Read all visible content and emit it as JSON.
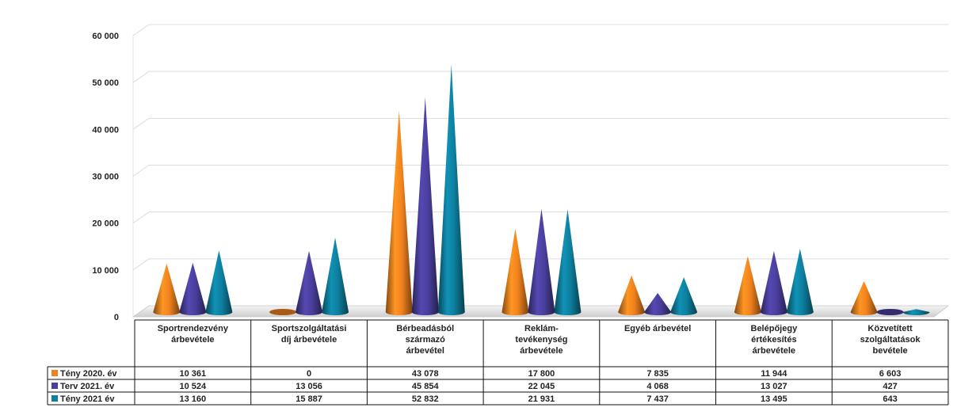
{
  "chart_data": {
    "type": "bar",
    "style": "3d-cone",
    "categories": [
      [
        "Sportrendezvény",
        "árbevétele"
      ],
      [
        "Sportszolgáltatási",
        "díj árbevétele"
      ],
      [
        "Bérbeadásból",
        "származó",
        "árbevétel"
      ],
      [
        "Reklám-",
        "tevékenység",
        "árbevétele"
      ],
      [
        "Egyéb árbevétel"
      ],
      [
        "Belépőjegy",
        "értékesítés",
        "árbevétele"
      ],
      [
        "Közvetített",
        "szolgáltatások",
        "bevétele"
      ]
    ],
    "series": [
      {
        "name": "Tény 2020. év",
        "color": "#f0821e",
        "values": [
          10361,
          0,
          43078,
          17800,
          7835,
          11944,
          6603
        ],
        "labels": [
          "10 361",
          "0",
          "43 078",
          "17 800",
          "7 835",
          "11 944",
          "6 603"
        ]
      },
      {
        "name": "Terv 2021. év",
        "color": "#4a3f9c",
        "values": [
          10524,
          13056,
          45854,
          22045,
          4068,
          13027,
          427
        ],
        "labels": [
          "10 524",
          "13 056",
          "45 854",
          "22 045",
          "4 068",
          "13 027",
          "427"
        ]
      },
      {
        "name": "Tény 2021  év",
        "color": "#0e7f9e",
        "values": [
          13160,
          15887,
          52832,
          21931,
          7437,
          13495,
          643
        ],
        "labels": [
          "13 160",
          "15 887",
          "52 832",
          "21 931",
          "7 437",
          "13 495",
          "643"
        ]
      }
    ],
    "yticks": [
      0,
      10000,
      20000,
      30000,
      40000,
      50000,
      60000
    ],
    "ytick_labels": [
      "0",
      "10 000",
      "20 000",
      "30 000",
      "40 000",
      "50 000",
      "60 000"
    ],
    "ylim": [
      0,
      60000
    ],
    "grid": true,
    "legend": "data-table",
    "title": "",
    "xlabel": "",
    "ylabel": ""
  }
}
